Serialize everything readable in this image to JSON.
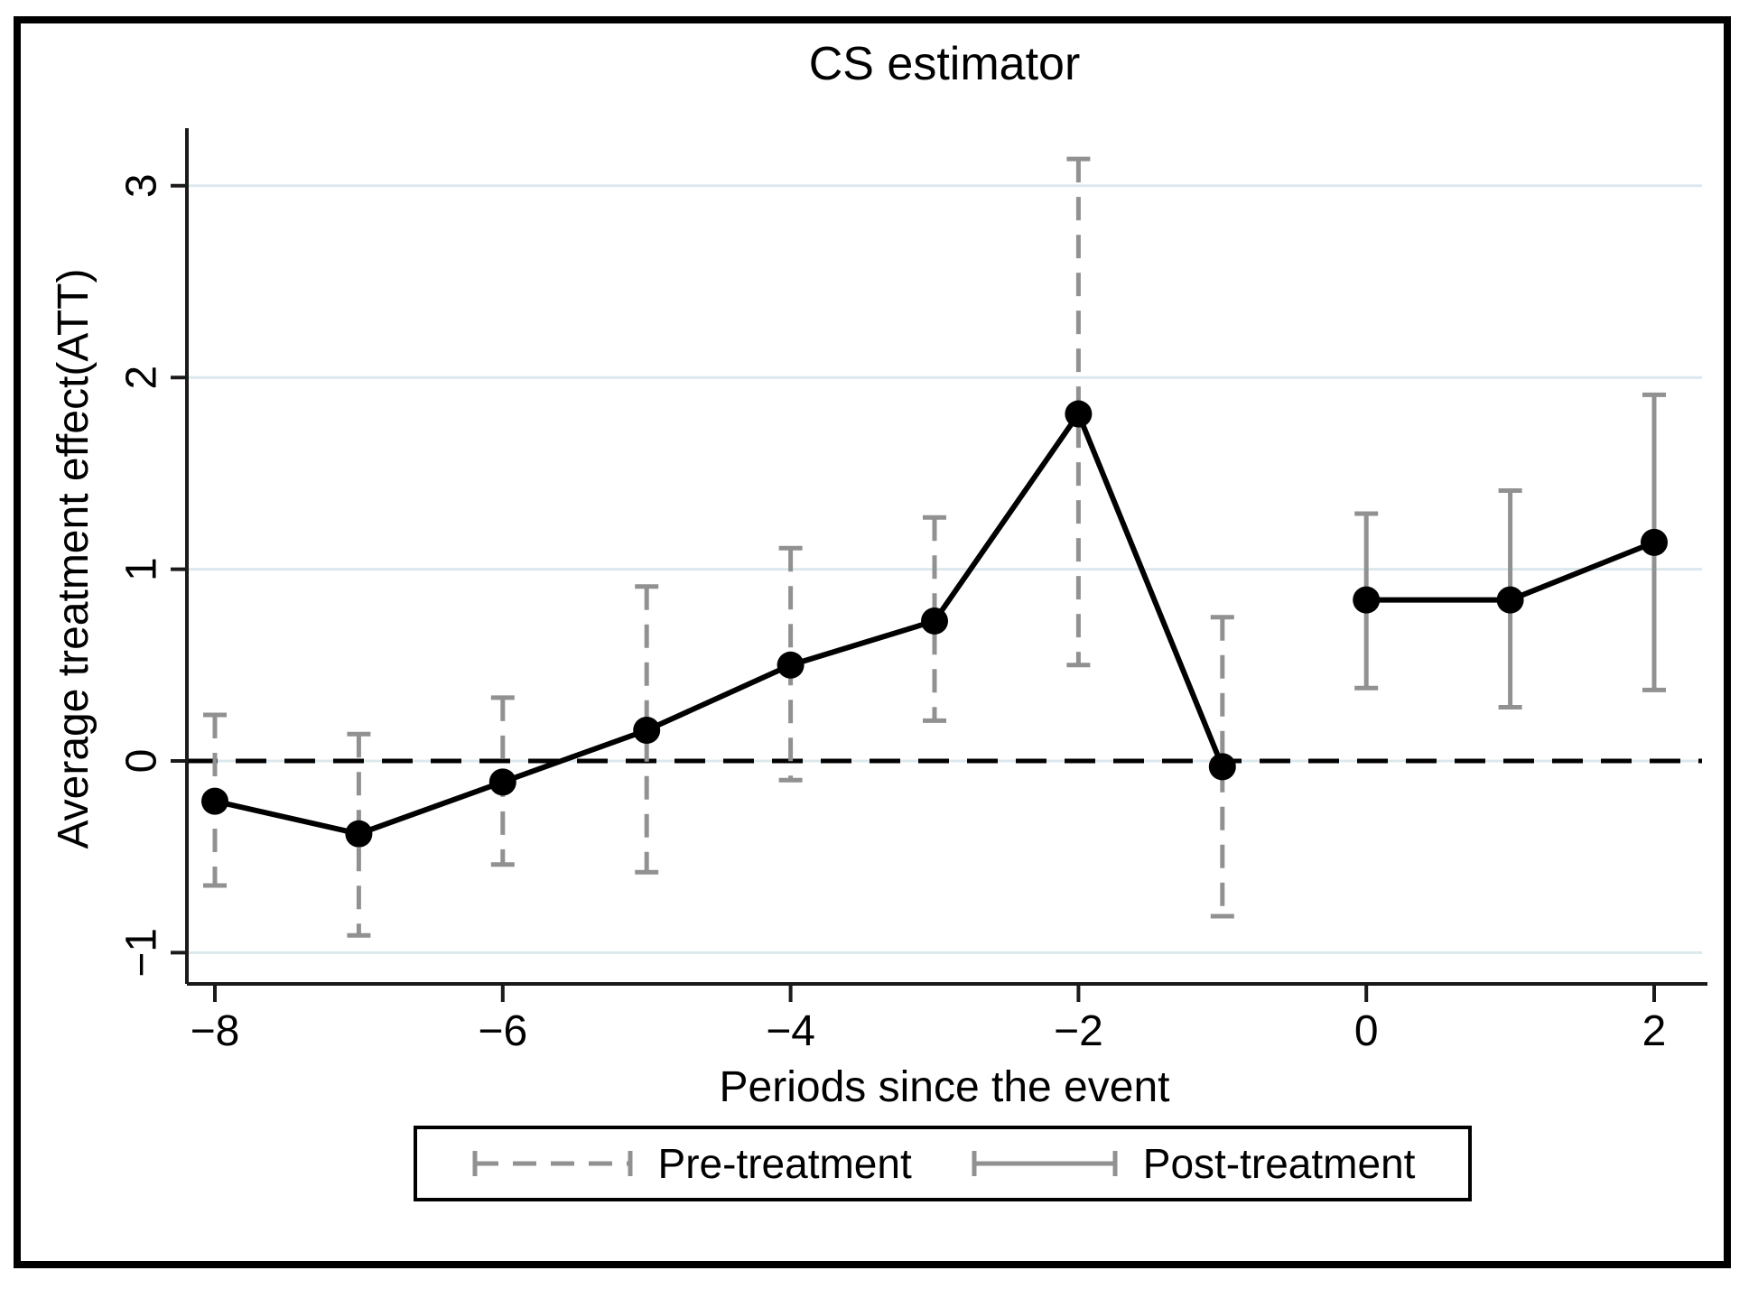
{
  "figure": {
    "title": "CS estimator",
    "x_axis_label": "Periods since the event",
    "y_axis_label": "Average treatment effect(ATT)"
  },
  "legend": {
    "items": [
      {
        "label": "Pre-treatment",
        "line_style": "dashed"
      },
      {
        "label": "Post-treatment",
        "line_style": "solid"
      }
    ]
  },
  "chart_data": {
    "type": "line",
    "title": "CS estimator",
    "xlabel": "Periods since the event",
    "ylabel": "Average treatment effect(ATT)",
    "x_ticks": [
      -8,
      -6,
      -4,
      -2,
      0,
      2
    ],
    "y_ticks": [
      -1,
      0,
      1,
      2,
      3
    ],
    "xlim": [
      -8.2,
      2.33
    ],
    "ylim": [
      -1.16,
      3.3
    ],
    "grid": "horizontal",
    "reference_line_y": 0,
    "legend_position": "bottom",
    "series": [
      {
        "name": "Pre-treatment",
        "ci_style": "dashed",
        "points": [
          {
            "x": -8,
            "y": -0.21,
            "ci_low": -0.65,
            "ci_high": 0.24
          },
          {
            "x": -7,
            "y": -0.38,
            "ci_low": -0.91,
            "ci_high": 0.14
          },
          {
            "x": -6,
            "y": -0.11,
            "ci_low": -0.54,
            "ci_high": 0.33
          },
          {
            "x": -5,
            "y": 0.16,
            "ci_low": -0.58,
            "ci_high": 0.91
          },
          {
            "x": -4,
            "y": 0.5,
            "ci_low": -0.1,
            "ci_high": 1.11
          },
          {
            "x": -3,
            "y": 0.73,
            "ci_low": 0.21,
            "ci_high": 1.27
          },
          {
            "x": -2,
            "y": 1.81,
            "ci_low": 0.5,
            "ci_high": 3.14
          },
          {
            "x": -1,
            "y": -0.03,
            "ci_low": -0.81,
            "ci_high": 0.75
          }
        ]
      },
      {
        "name": "Post-treatment",
        "ci_style": "solid",
        "points": [
          {
            "x": 0,
            "y": 0.84,
            "ci_low": 0.38,
            "ci_high": 1.29
          },
          {
            "x": 1,
            "y": 0.84,
            "ci_low": 0.28,
            "ci_high": 1.41
          },
          {
            "x": 2,
            "y": 1.14,
            "ci_low": 0.37,
            "ci_high": 1.91
          }
        ]
      }
    ],
    "colors": {
      "series_line": "#000000",
      "marker": "#000000",
      "ci_bar": "#919191",
      "gridline": "#dce8ed",
      "zero_line": "#000000",
      "axis": "#1a1a1a",
      "text": "#000000"
    }
  }
}
